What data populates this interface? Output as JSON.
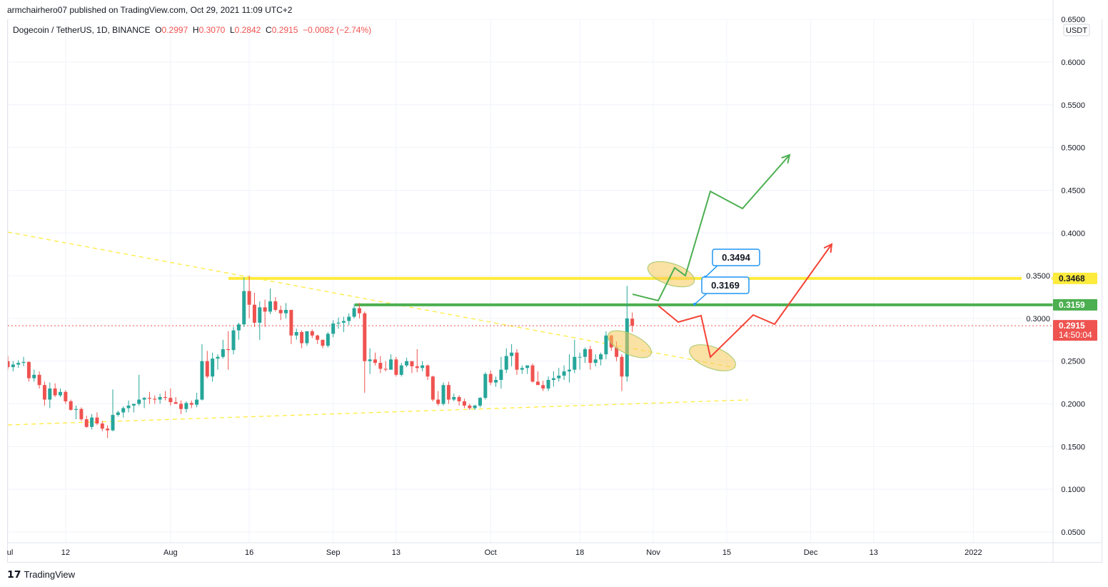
{
  "published": "armchairhero07 published on TradingView.com, Oct 29, 2021 11:09 UTC+2",
  "legend": {
    "symbol": "Dogecoin / TetherUS, 1D, BINANCE",
    "o_label": "O",
    "o": "0.2997",
    "h_label": "H",
    "h": "0.3070",
    "l_label": "L",
    "l": "0.2842",
    "c_label": "C",
    "c": "0.2915",
    "change": "−0.0082 (−2.74%)"
  },
  "currency": "USDT",
  "footer_brand": "TradingView",
  "colors": {
    "up": "#26a69a",
    "down": "#ef5350",
    "resistance": "#ffeb3b",
    "support": "#4caf50",
    "bull_path": "#4caf50",
    "bear_path": "#f44336",
    "callout": "#2196f3"
  },
  "chart_data": {
    "type": "candlestick",
    "start_date": "2021-07-01",
    "ylim": [
      0.03,
      0.66
    ],
    "y_ticks": [
      "0.6500",
      "0.6000",
      "0.5500",
      "0.5000",
      "0.4500",
      "0.4000",
      "0.3500",
      "0.3000",
      "0.2500",
      "0.2000",
      "0.1500",
      "0.1000",
      "0.0500"
    ],
    "x_ticks": [
      {
        "label": "ul",
        "date": "2021-07-01"
      },
      {
        "label": "12",
        "date": "2021-07-12"
      },
      {
        "label": "Aug",
        "date": "2021-08-01"
      },
      {
        "label": "16",
        "date": "2021-08-16"
      },
      {
        "label": "Sep",
        "date": "2021-09-01"
      },
      {
        "label": "13",
        "date": "2021-09-13"
      },
      {
        "label": "Oct",
        "date": "2021-10-01"
      },
      {
        "label": "18",
        "date": "2021-10-18"
      },
      {
        "label": "Nov",
        "date": "2021-11-01"
      },
      {
        "label": "15",
        "date": "2021-11-15"
      },
      {
        "label": "Dec",
        "date": "2021-12-01"
      },
      {
        "label": "13",
        "date": "2021-12-13"
      },
      {
        "label": "2022",
        "date": "2022-01-01"
      }
    ],
    "ohlc": [
      [
        0.25,
        0.256,
        0.24,
        0.243
      ],
      [
        0.243,
        0.25,
        0.238,
        0.246
      ],
      [
        0.246,
        0.251,
        0.242,
        0.248
      ],
      [
        0.248,
        0.255,
        0.244,
        0.249
      ],
      [
        0.249,
        0.25,
        0.226,
        0.23
      ],
      [
        0.23,
        0.24,
        0.226,
        0.234
      ],
      [
        0.234,
        0.238,
        0.218,
        0.222
      ],
      [
        0.222,
        0.226,
        0.198,
        0.205
      ],
      [
        0.205,
        0.225,
        0.195,
        0.218
      ],
      [
        0.218,
        0.224,
        0.208,
        0.21
      ],
      [
        0.21,
        0.218,
        0.208,
        0.214
      ],
      [
        0.214,
        0.216,
        0.2,
        0.203
      ],
      [
        0.203,
        0.205,
        0.192,
        0.193
      ],
      [
        0.193,
        0.198,
        0.182,
        0.194
      ],
      [
        0.194,
        0.196,
        0.18,
        0.182
      ],
      [
        0.182,
        0.186,
        0.172,
        0.173
      ],
      [
        0.173,
        0.188,
        0.17,
        0.184
      ],
      [
        0.184,
        0.19,
        0.175,
        0.177
      ],
      [
        0.177,
        0.18,
        0.168,
        0.171
      ],
      [
        0.171,
        0.175,
        0.16,
        0.169
      ],
      [
        0.169,
        0.217,
        0.168,
        0.187
      ],
      [
        0.187,
        0.192,
        0.185,
        0.19
      ],
      [
        0.19,
        0.197,
        0.184,
        0.195
      ],
      [
        0.195,
        0.204,
        0.19,
        0.198
      ],
      [
        0.198,
        0.2,
        0.19,
        0.2
      ],
      [
        0.2,
        0.234,
        0.198,
        0.205
      ],
      [
        0.205,
        0.208,
        0.195,
        0.207
      ],
      [
        0.207,
        0.214,
        0.2,
        0.206
      ],
      [
        0.206,
        0.21,
        0.2,
        0.205
      ],
      [
        0.205,
        0.212,
        0.2,
        0.208
      ],
      [
        0.208,
        0.215,
        0.204,
        0.207
      ],
      [
        0.207,
        0.218,
        0.198,
        0.202
      ],
      [
        0.202,
        0.208,
        0.2,
        0.2
      ],
      [
        0.2,
        0.204,
        0.188,
        0.194
      ],
      [
        0.194,
        0.203,
        0.19,
        0.201
      ],
      [
        0.201,
        0.204,
        0.195,
        0.199
      ],
      [
        0.199,
        0.213,
        0.196,
        0.205
      ],
      [
        0.205,
        0.27,
        0.204,
        0.25
      ],
      [
        0.25,
        0.262,
        0.23,
        0.232
      ],
      [
        0.232,
        0.26,
        0.226,
        0.253
      ],
      [
        0.253,
        0.258,
        0.24,
        0.255
      ],
      [
        0.255,
        0.275,
        0.253,
        0.264
      ],
      [
        0.264,
        0.285,
        0.24,
        0.263
      ],
      [
        0.263,
        0.29,
        0.258,
        0.286
      ],
      [
        0.286,
        0.295,
        0.275,
        0.293
      ],
      [
        0.293,
        0.348,
        0.29,
        0.332
      ],
      [
        0.332,
        0.35,
        0.3,
        0.316
      ],
      [
        0.316,
        0.33,
        0.29,
        0.295
      ],
      [
        0.295,
        0.32,
        0.275,
        0.313
      ],
      [
        0.313,
        0.322,
        0.29,
        0.308
      ],
      [
        0.308,
        0.335,
        0.305,
        0.32
      ],
      [
        0.32,
        0.325,
        0.308,
        0.31
      ],
      [
        0.31,
        0.315,
        0.298,
        0.306
      ],
      [
        0.306,
        0.318,
        0.3,
        0.31
      ],
      [
        0.31,
        0.31,
        0.27,
        0.28
      ],
      [
        0.28,
        0.288,
        0.275,
        0.284
      ],
      [
        0.284,
        0.286,
        0.265,
        0.271
      ],
      [
        0.271,
        0.285,
        0.268,
        0.285
      ],
      [
        0.285,
        0.287,
        0.277,
        0.28
      ],
      [
        0.28,
        0.281,
        0.27,
        0.275
      ],
      [
        0.275,
        0.275,
        0.265,
        0.268
      ],
      [
        0.268,
        0.284,
        0.266,
        0.282
      ],
      [
        0.282,
        0.298,
        0.278,
        0.294
      ],
      [
        0.294,
        0.301,
        0.288,
        0.295
      ],
      [
        0.295,
        0.302,
        0.284,
        0.297
      ],
      [
        0.297,
        0.306,
        0.292,
        0.302
      ],
      [
        0.302,
        0.317,
        0.3,
        0.312
      ],
      [
        0.312,
        0.318,
        0.3,
        0.306
      ],
      [
        0.306,
        0.308,
        0.213,
        0.25
      ],
      [
        0.25,
        0.265,
        0.235,
        0.252
      ],
      [
        0.252,
        0.26,
        0.245,
        0.248
      ],
      [
        0.248,
        0.256,
        0.236,
        0.241
      ],
      [
        0.241,
        0.25,
        0.238,
        0.24
      ],
      [
        0.24,
        0.258,
        0.24,
        0.252
      ],
      [
        0.252,
        0.255,
        0.232,
        0.234
      ],
      [
        0.234,
        0.248,
        0.232,
        0.245
      ],
      [
        0.245,
        0.254,
        0.243,
        0.25
      ],
      [
        0.25,
        0.25,
        0.236,
        0.244
      ],
      [
        0.244,
        0.264,
        0.237,
        0.242
      ],
      [
        0.242,
        0.25,
        0.238,
        0.245
      ],
      [
        0.245,
        0.246,
        0.228,
        0.232
      ],
      [
        0.232,
        0.233,
        0.203,
        0.205
      ],
      [
        0.205,
        0.215,
        0.198,
        0.2
      ],
      [
        0.2,
        0.225,
        0.198,
        0.222
      ],
      [
        0.222,
        0.226,
        0.2,
        0.205
      ],
      [
        0.205,
        0.212,
        0.203,
        0.208
      ],
      [
        0.208,
        0.21,
        0.198,
        0.203
      ],
      [
        0.203,
        0.206,
        0.195,
        0.198
      ],
      [
        0.198,
        0.2,
        0.193,
        0.195
      ],
      [
        0.195,
        0.199,
        0.193,
        0.198
      ],
      [
        0.198,
        0.208,
        0.196,
        0.207
      ],
      [
        0.207,
        0.237,
        0.205,
        0.235
      ],
      [
        0.235,
        0.239,
        0.222,
        0.225
      ],
      [
        0.225,
        0.232,
        0.22,
        0.228
      ],
      [
        0.228,
        0.255,
        0.218,
        0.24
      ],
      [
        0.24,
        0.265,
        0.236,
        0.256
      ],
      [
        0.256,
        0.27,
        0.244,
        0.26
      ],
      [
        0.26,
        0.264,
        0.234,
        0.24
      ],
      [
        0.24,
        0.245,
        0.235,
        0.242
      ],
      [
        0.242,
        0.245,
        0.235,
        0.245
      ],
      [
        0.245,
        0.247,
        0.225,
        0.226
      ],
      [
        0.226,
        0.238,
        0.222,
        0.222
      ],
      [
        0.222,
        0.227,
        0.215,
        0.218
      ],
      [
        0.218,
        0.232,
        0.215,
        0.228
      ],
      [
        0.228,
        0.238,
        0.22,
        0.23
      ],
      [
        0.23,
        0.242,
        0.226,
        0.233
      ],
      [
        0.233,
        0.245,
        0.228,
        0.238
      ],
      [
        0.238,
        0.258,
        0.225,
        0.24
      ],
      [
        0.24,
        0.275,
        0.236,
        0.255
      ],
      [
        0.255,
        0.26,
        0.24,
        0.255
      ],
      [
        0.255,
        0.266,
        0.248,
        0.264
      ],
      [
        0.264,
        0.268,
        0.24,
        0.248
      ],
      [
        0.248,
        0.258,
        0.244,
        0.252
      ],
      [
        0.252,
        0.26,
        0.245,
        0.258
      ],
      [
        0.258,
        0.285,
        0.252,
        0.28
      ],
      [
        0.28,
        0.281,
        0.262,
        0.266
      ],
      [
        0.266,
        0.273,
        0.25,
        0.255
      ],
      [
        0.255,
        0.258,
        0.215,
        0.232
      ],
      [
        0.232,
        0.338,
        0.226,
        0.3
      ],
      [
        0.2997,
        0.307,
        0.2842,
        0.2915
      ]
    ],
    "levels": [
      {
        "label": "0.3468",
        "price": 0.3468,
        "color": "#ffeb3b"
      },
      {
        "label": "0.3159",
        "price": 0.3159,
        "color": "#4caf50"
      }
    ],
    "last_price": {
      "label": "0.2915",
      "countdown": "14:50:04",
      "price": 0.2915
    },
    "callouts": [
      {
        "label": "0.3494",
        "price": 0.3494
      },
      {
        "label": "0.3169",
        "price": 0.3169
      }
    ]
  }
}
